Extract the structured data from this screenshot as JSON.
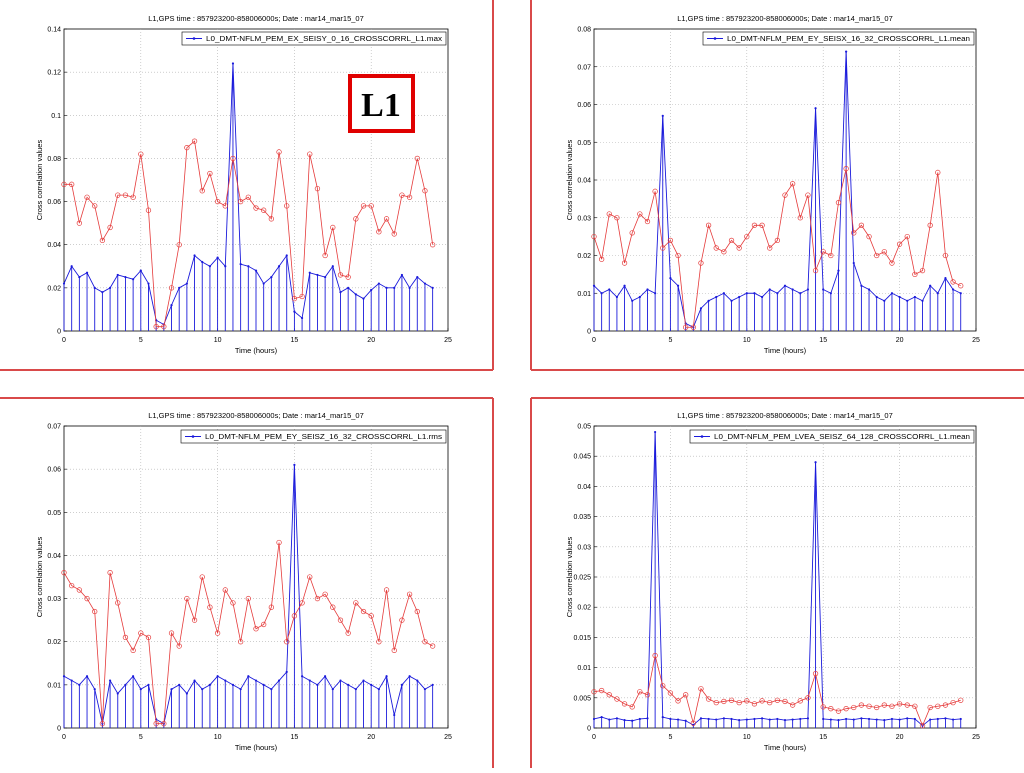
{
  "badge": {
    "text": "L1",
    "border_color": "#e00000"
  },
  "frame_color": "#d94a4a",
  "series_color": "#1a1adb",
  "envelope_color": "#e53b3b",
  "chart_data": [
    {
      "type": "line",
      "title": "L1,GPS time : 857923200-858006000s;  Date : mar14_mar15_07",
      "xlabel": "Time (hours)",
      "ylabel": "Cross correlation values",
      "xlim": [
        0,
        25
      ],
      "ylim": [
        0,
        0.14
      ],
      "xticks": [
        "0",
        "5",
        "10",
        "15",
        "20",
        "25"
      ],
      "yticks": [
        "0",
        "0.02",
        "0.04",
        "0.06",
        "0.08",
        "0.1",
        "0.12",
        "0.14"
      ],
      "grid": true,
      "legend_position": "top-right",
      "series": [
        {
          "name": "L0_DMT-NFLM_PEM_EX_SEISY_0_16_CROSSCORRL_L1.max",
          "role": "data",
          "x": [
            0,
            0.5,
            1,
            1.5,
            2,
            2.5,
            3,
            3.5,
            4,
            4.5,
            5,
            5.5,
            6,
            6.5,
            7,
            7.5,
            8,
            8.5,
            9,
            9.5,
            10,
            10.5,
            11,
            11.5,
            12,
            12.5,
            13,
            13.5,
            14,
            14.5,
            15,
            15.5,
            16,
            16.5,
            17,
            17.5,
            18,
            18.5,
            19,
            19.5,
            20,
            20.5,
            21,
            21.5,
            22,
            22.5,
            23,
            23.5,
            24
          ],
          "values": [
            0.022,
            0.03,
            0.025,
            0.027,
            0.02,
            0.018,
            0.02,
            0.026,
            0.025,
            0.024,
            0.028,
            0.022,
            0.005,
            0.003,
            0.012,
            0.02,
            0.022,
            0.035,
            0.032,
            0.03,
            0.034,
            0.03,
            0.124,
            0.031,
            0.03,
            0.028,
            0.022,
            0.025,
            0.03,
            0.035,
            0.009,
            0.006,
            0.027,
            0.026,
            0.025,
            0.03,
            0.018,
            0.02,
            0.017,
            0.015,
            0.019,
            0.022,
            0.02,
            0.02,
            0.026,
            0.02,
            0.025,
            0.022,
            0.02
          ]
        },
        {
          "name": "",
          "role": "envelope",
          "x": [
            0,
            0.5,
            1,
            1.5,
            2,
            2.5,
            3,
            3.5,
            4,
            4.5,
            5,
            5.5,
            6,
            6.5,
            7,
            7.5,
            8,
            8.5,
            9,
            9.5,
            10,
            10.5,
            11,
            11.5,
            12,
            12.5,
            13,
            13.5,
            14,
            14.5,
            15,
            15.5,
            16,
            16.5,
            17,
            17.5,
            18,
            18.5,
            19,
            19.5,
            20,
            20.5,
            21,
            21.5,
            22,
            22.5,
            23,
            23.5,
            24
          ],
          "values": [
            0.068,
            0.068,
            0.05,
            0.062,
            0.058,
            0.042,
            0.048,
            0.063,
            0.063,
            0.062,
            0.082,
            0.056,
            0.002,
            0.002,
            0.02,
            0.04,
            0.085,
            0.088,
            0.065,
            0.073,
            0.06,
            0.058,
            0.08,
            0.06,
            0.062,
            0.057,
            0.056,
            0.052,
            0.083,
            0.058,
            0.015,
            0.016,
            0.082,
            0.066,
            0.035,
            0.048,
            0.026,
            0.025,
            0.052,
            0.058,
            0.058,
            0.046,
            0.052,
            0.045,
            0.063,
            0.062,
            0.08,
            0.065,
            0.04
          ]
        }
      ]
    },
    {
      "type": "line",
      "title": "L1,GPS time : 857923200-858006000s;  Date : mar14_mar15_07",
      "xlabel": "Time (hours)",
      "ylabel": "Cross correlation values",
      "xlim": [
        0,
        25
      ],
      "ylim": [
        0,
        0.08
      ],
      "xticks": [
        "0",
        "5",
        "10",
        "15",
        "20",
        "25"
      ],
      "yticks": [
        "0",
        "0.01",
        "0.02",
        "0.03",
        "0.04",
        "0.05",
        "0.06",
        "0.07",
        "0.08"
      ],
      "grid": true,
      "legend_position": "top-right",
      "series": [
        {
          "name": "L0_DMT-NFLM_PEM_EY_SEISX_16_32_CROSSCORRL_L1.mean",
          "role": "data",
          "x": [
            0,
            0.5,
            1,
            1.5,
            2,
            2.5,
            3,
            3.5,
            4,
            4.5,
            5,
            5.5,
            6,
            6.5,
            7,
            7.5,
            8,
            8.5,
            9,
            9.5,
            10,
            10.5,
            11,
            11.5,
            12,
            12.5,
            13,
            13.5,
            14,
            14.5,
            15,
            15.5,
            16,
            16.5,
            17,
            17.5,
            18,
            18.5,
            19,
            19.5,
            20,
            20.5,
            21,
            21.5,
            22,
            22.5,
            23,
            23.5,
            24
          ],
          "values": [
            0.012,
            0.01,
            0.011,
            0.009,
            0.012,
            0.008,
            0.009,
            0.011,
            0.01,
            0.057,
            0.014,
            0.012,
            0.002,
            0.001,
            0.006,
            0.008,
            0.009,
            0.01,
            0.008,
            0.009,
            0.01,
            0.01,
            0.009,
            0.011,
            0.01,
            0.012,
            0.011,
            0.01,
            0.011,
            0.059,
            0.011,
            0.01,
            0.016,
            0.074,
            0.018,
            0.012,
            0.011,
            0.009,
            0.008,
            0.01,
            0.009,
            0.008,
            0.009,
            0.008,
            0.012,
            0.01,
            0.014,
            0.011,
            0.01
          ]
        },
        {
          "name": "",
          "role": "envelope",
          "x": [
            0,
            0.5,
            1,
            1.5,
            2,
            2.5,
            3,
            3.5,
            4,
            4.5,
            5,
            5.5,
            6,
            6.5,
            7,
            7.5,
            8,
            8.5,
            9,
            9.5,
            10,
            10.5,
            11,
            11.5,
            12,
            12.5,
            13,
            13.5,
            14,
            14.5,
            15,
            15.5,
            16,
            16.5,
            17,
            17.5,
            18,
            18.5,
            19,
            19.5,
            20,
            20.5,
            21,
            21.5,
            22,
            22.5,
            23,
            23.5,
            24
          ],
          "values": [
            0.025,
            0.019,
            0.031,
            0.03,
            0.018,
            0.026,
            0.031,
            0.029,
            0.037,
            0.022,
            0.024,
            0.02,
            0.001,
            0.001,
            0.018,
            0.028,
            0.022,
            0.021,
            0.024,
            0.022,
            0.025,
            0.028,
            0.028,
            0.022,
            0.024,
            0.036,
            0.039,
            0.03,
            0.036,
            0.016,
            0.021,
            0.02,
            0.034,
            0.043,
            0.026,
            0.028,
            0.025,
            0.02,
            0.021,
            0.018,
            0.023,
            0.025,
            0.015,
            0.016,
            0.028,
            0.042,
            0.02,
            0.013,
            0.012
          ]
        }
      ]
    },
    {
      "type": "line",
      "title": "L1,GPS time : 857923200-858006000s;  Date : mar14_mar15_07",
      "xlabel": "Time (hours)",
      "ylabel": "Cross correlation values",
      "xlim": [
        0,
        25
      ],
      "ylim": [
        0,
        0.07
      ],
      "xticks": [
        "0",
        "5",
        "10",
        "15",
        "20",
        "25"
      ],
      "yticks": [
        "0",
        "0.01",
        "0.02",
        "0.03",
        "0.04",
        "0.05",
        "0.06",
        "0.07"
      ],
      "grid": true,
      "legend_position": "top-right",
      "series": [
        {
          "name": "L0_DMT-NFLM_PEM_EY_SEISZ_16_32_CROSSCORRL_L1.rms",
          "role": "data",
          "x": [
            0,
            0.5,
            1,
            1.5,
            2,
            2.5,
            3,
            3.5,
            4,
            4.5,
            5,
            5.5,
            6,
            6.5,
            7,
            7.5,
            8,
            8.5,
            9,
            9.5,
            10,
            10.5,
            11,
            11.5,
            12,
            12.5,
            13,
            13.5,
            14,
            14.5,
            15,
            15.5,
            16,
            16.5,
            17,
            17.5,
            18,
            18.5,
            19,
            19.5,
            20,
            20.5,
            21,
            21.5,
            22,
            22.5,
            23,
            23.5,
            24
          ],
          "values": [
            0.012,
            0.011,
            0.01,
            0.012,
            0.009,
            0.001,
            0.011,
            0.008,
            0.01,
            0.012,
            0.009,
            0.01,
            0.002,
            0.001,
            0.009,
            0.01,
            0.008,
            0.011,
            0.009,
            0.01,
            0.012,
            0.011,
            0.01,
            0.009,
            0.012,
            0.011,
            0.01,
            0.009,
            0.011,
            0.013,
            0.061,
            0.012,
            0.011,
            0.01,
            0.012,
            0.009,
            0.011,
            0.01,
            0.009,
            0.011,
            0.01,
            0.009,
            0.012,
            0.003,
            0.01,
            0.012,
            0.011,
            0.009,
            0.01
          ]
        },
        {
          "name": "",
          "role": "envelope",
          "x": [
            0,
            0.5,
            1,
            1.5,
            2,
            2.5,
            3,
            3.5,
            4,
            4.5,
            5,
            5.5,
            6,
            6.5,
            7,
            7.5,
            8,
            8.5,
            9,
            9.5,
            10,
            10.5,
            11,
            11.5,
            12,
            12.5,
            13,
            13.5,
            14,
            14.5,
            15,
            15.5,
            16,
            16.5,
            17,
            17.5,
            18,
            18.5,
            19,
            19.5,
            20,
            20.5,
            21,
            21.5,
            22,
            22.5,
            23,
            23.5,
            24
          ],
          "values": [
            0.036,
            0.033,
            0.032,
            0.03,
            0.027,
            0.001,
            0.036,
            0.029,
            0.021,
            0.018,
            0.022,
            0.021,
            0.001,
            0.001,
            0.022,
            0.019,
            0.03,
            0.025,
            0.035,
            0.028,
            0.022,
            0.032,
            0.029,
            0.02,
            0.03,
            0.023,
            0.024,
            0.028,
            0.043,
            0.02,
            0.026,
            0.029,
            0.035,
            0.03,
            0.031,
            0.028,
            0.025,
            0.022,
            0.029,
            0.027,
            0.026,
            0.02,
            0.032,
            0.018,
            0.025,
            0.031,
            0.027,
            0.02,
            0.019
          ]
        }
      ]
    },
    {
      "type": "line",
      "title": "L1,GPS time : 857923200-858006000s;  Date : mar14_mar15_07",
      "xlabel": "Time (hours)",
      "ylabel": "Cross correlation values",
      "xlim": [
        0,
        25
      ],
      "ylim": [
        0,
        0.05
      ],
      "xticks": [
        "0",
        "5",
        "10",
        "15",
        "20",
        "25"
      ],
      "yticks": [
        "0",
        "0.005",
        "0.01",
        "0.015",
        "0.02",
        "0.025",
        "0.03",
        "0.035",
        "0.04",
        "0.045",
        "0.05"
      ],
      "grid": true,
      "legend_position": "top-right",
      "series": [
        {
          "name": "L0_DMT-NFLM_PEM_LVEA_SEISZ_64_128_CROSSCORRL_L1.mean",
          "role": "data",
          "x": [
            0,
            0.5,
            1,
            1.5,
            2,
            2.5,
            3,
            3.5,
            4,
            4.5,
            5,
            5.5,
            6,
            6.5,
            7,
            7.5,
            8,
            8.5,
            9,
            9.5,
            10,
            10.5,
            11,
            11.5,
            12,
            12.5,
            13,
            13.5,
            14,
            14.5,
            15,
            15.5,
            16,
            16.5,
            17,
            17.5,
            18,
            18.5,
            19,
            19.5,
            20,
            20.5,
            21,
            21.5,
            22,
            22.5,
            23,
            23.5,
            24
          ],
          "values": [
            0.0015,
            0.0018,
            0.0014,
            0.0016,
            0.0013,
            0.0012,
            0.0015,
            0.0016,
            0.049,
            0.0018,
            0.0015,
            0.0014,
            0.0012,
            0.0005,
            0.0016,
            0.0015,
            0.0014,
            0.0016,
            0.0015,
            0.0013,
            0.0014,
            0.0015,
            0.0016,
            0.0014,
            0.0015,
            0.0013,
            0.0014,
            0.0015,
            0.0016,
            0.044,
            0.0015,
            0.0014,
            0.0013,
            0.0015,
            0.0014,
            0.0016,
            0.0015,
            0.0014,
            0.0013,
            0.0015,
            0.0014,
            0.0016,
            0.0015,
            0.0004,
            0.0014,
            0.0015,
            0.0016,
            0.0014,
            0.0015
          ]
        },
        {
          "name": "",
          "role": "envelope",
          "x": [
            0,
            0.5,
            1,
            1.5,
            2,
            2.5,
            3,
            3.5,
            4,
            4.5,
            5,
            5.5,
            6,
            6.5,
            7,
            7.5,
            8,
            8.5,
            9,
            9.5,
            10,
            10.5,
            11,
            11.5,
            12,
            12.5,
            13,
            13.5,
            14,
            14.5,
            15,
            15.5,
            16,
            16.5,
            17,
            17.5,
            18,
            18.5,
            19,
            19.5,
            20,
            20.5,
            21,
            21.5,
            22,
            22.5,
            23,
            23.5,
            24
          ],
          "values": [
            0.006,
            0.0062,
            0.0055,
            0.0048,
            0.004,
            0.0035,
            0.006,
            0.0055,
            0.012,
            0.007,
            0.0058,
            0.0045,
            0.0055,
            0.0008,
            0.0065,
            0.0048,
            0.0042,
            0.0044,
            0.0046,
            0.0042,
            0.0045,
            0.004,
            0.0045,
            0.0042,
            0.0046,
            0.0044,
            0.0038,
            0.0045,
            0.005,
            0.009,
            0.0035,
            0.0032,
            0.0028,
            0.0032,
            0.0034,
            0.0038,
            0.0036,
            0.0034,
            0.0038,
            0.0036,
            0.004,
            0.0038,
            0.0036,
            0.0004,
            0.0034,
            0.0036,
            0.0038,
            0.0042,
            0.0046
          ]
        }
      ]
    }
  ]
}
